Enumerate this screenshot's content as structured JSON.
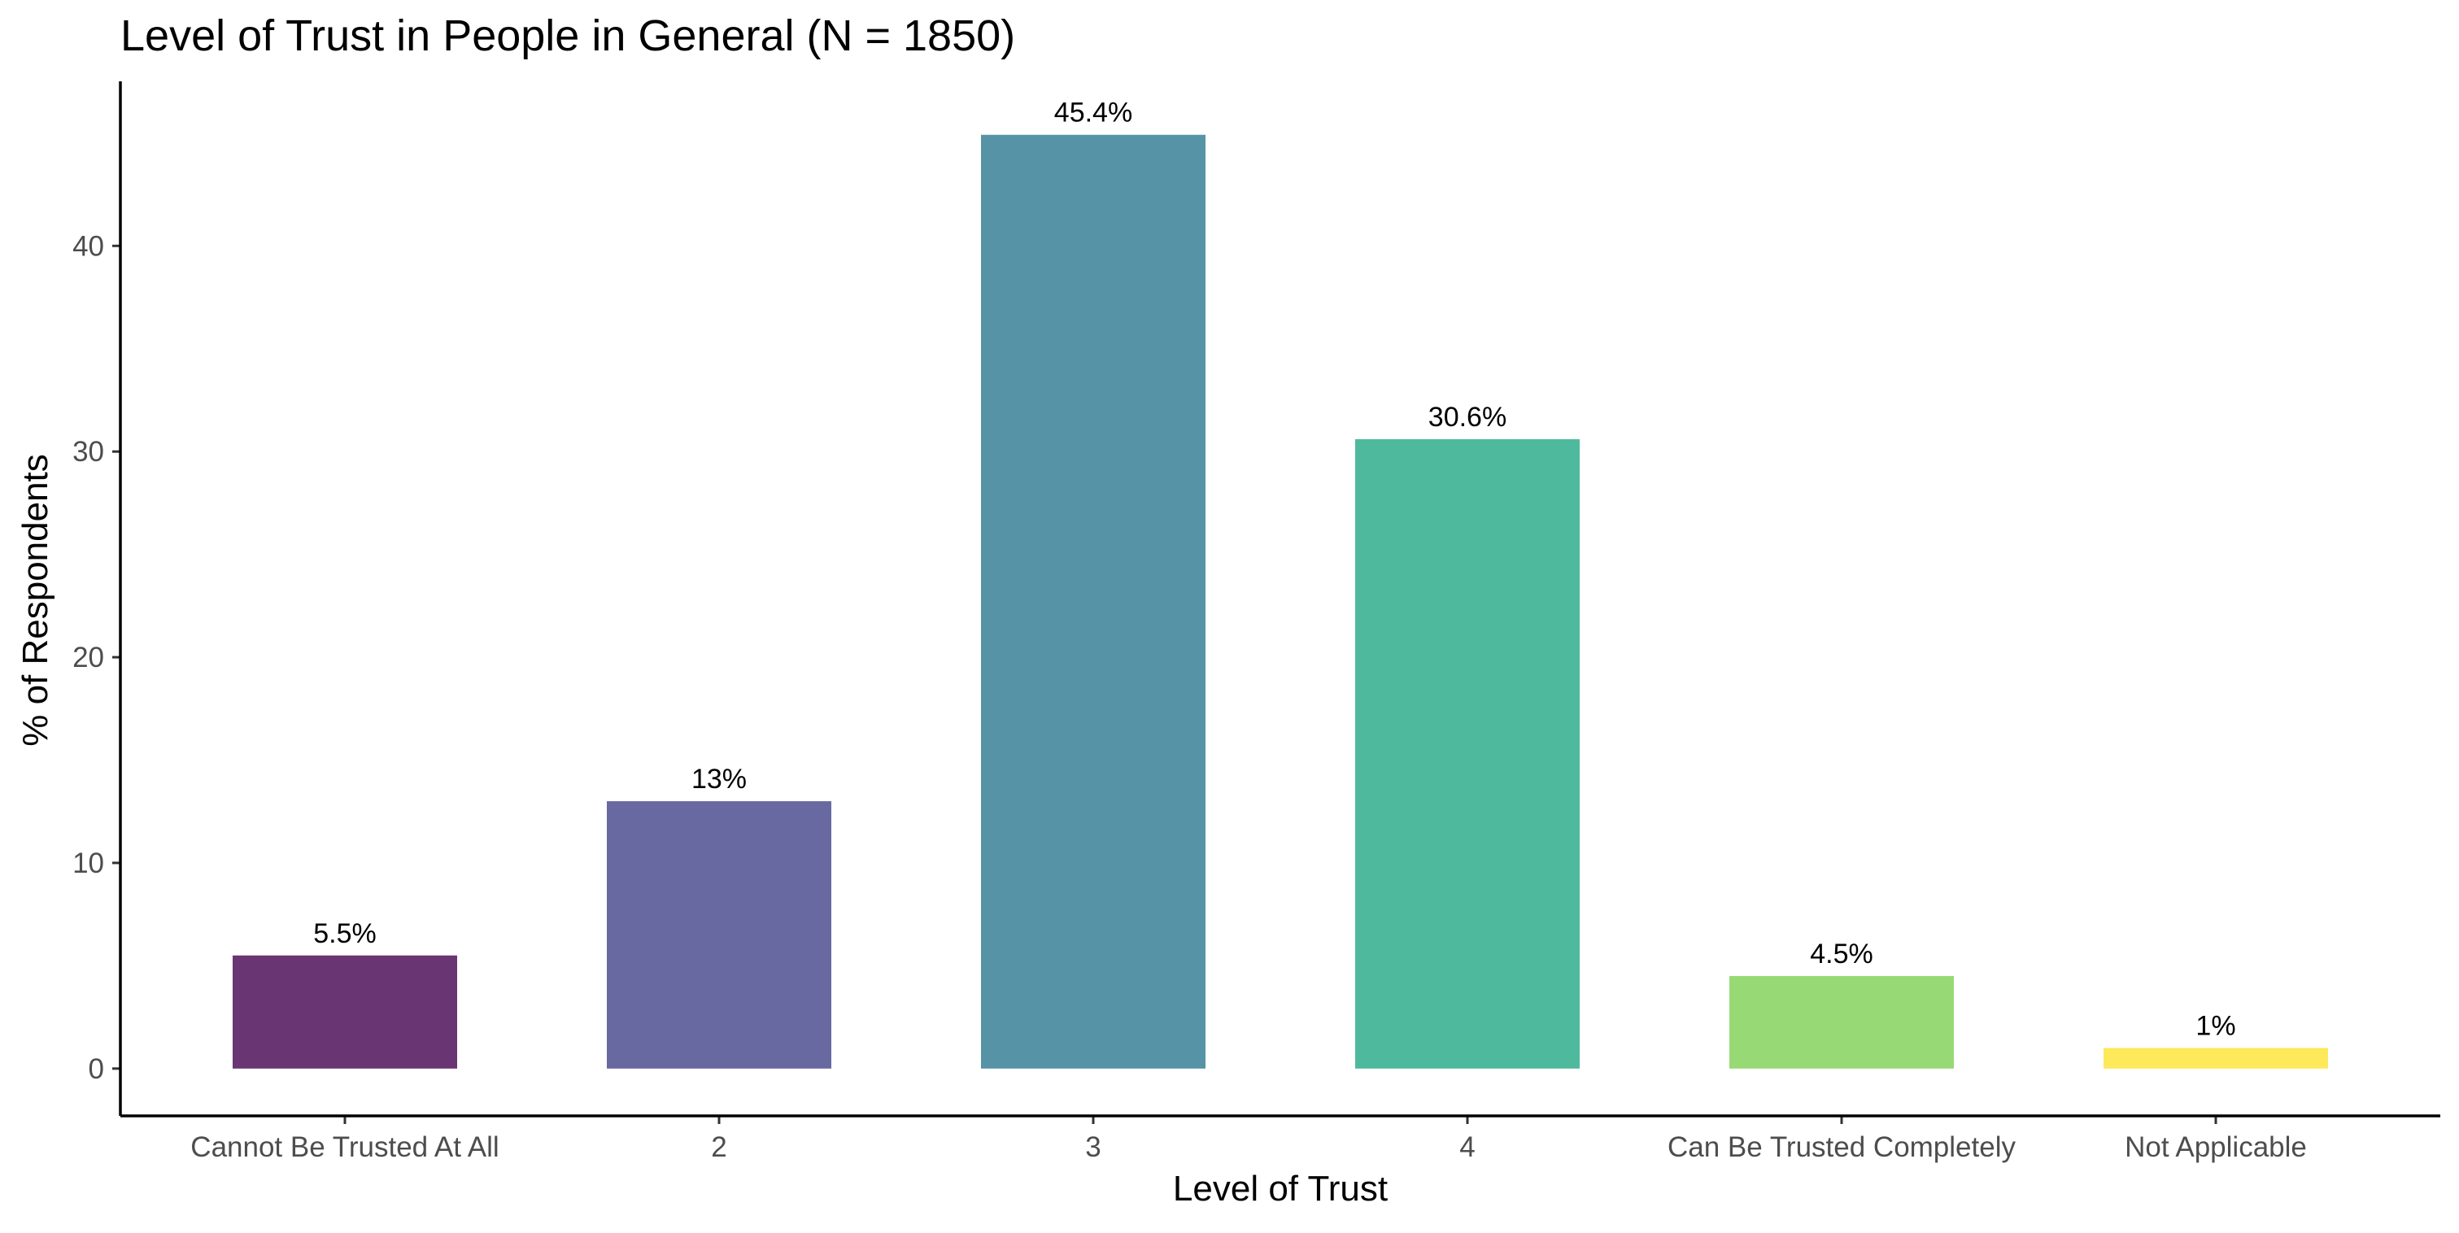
{
  "chart_data": {
    "type": "bar",
    "title": "Level of Trust in People in General (N = 1850)",
    "xlabel": "Level of Trust",
    "ylabel": "% of Respondents",
    "categories": [
      "Cannot Be Trusted At All",
      "2",
      "3",
      "4",
      "Can Be Trusted Completely",
      "Not Applicable"
    ],
    "values": [
      5.5,
      13,
      45.4,
      30.6,
      4.5,
      1
    ],
    "data_labels": [
      "5.5%",
      "13%",
      "45.4%",
      "30.6%",
      "4.5%",
      "1%"
    ],
    "colors": [
      "#6a3573",
      "#6869a0",
      "#5793a6",
      "#4fb99d",
      "#97d975",
      "#fde95a"
    ],
    "ylim": [
      -2.3,
      48
    ],
    "yticks": [
      0,
      10,
      20,
      30,
      40
    ],
    "ytick_labels": [
      "0",
      "10",
      "20",
      "30",
      "40"
    ],
    "grid": false,
    "legend": "none"
  }
}
